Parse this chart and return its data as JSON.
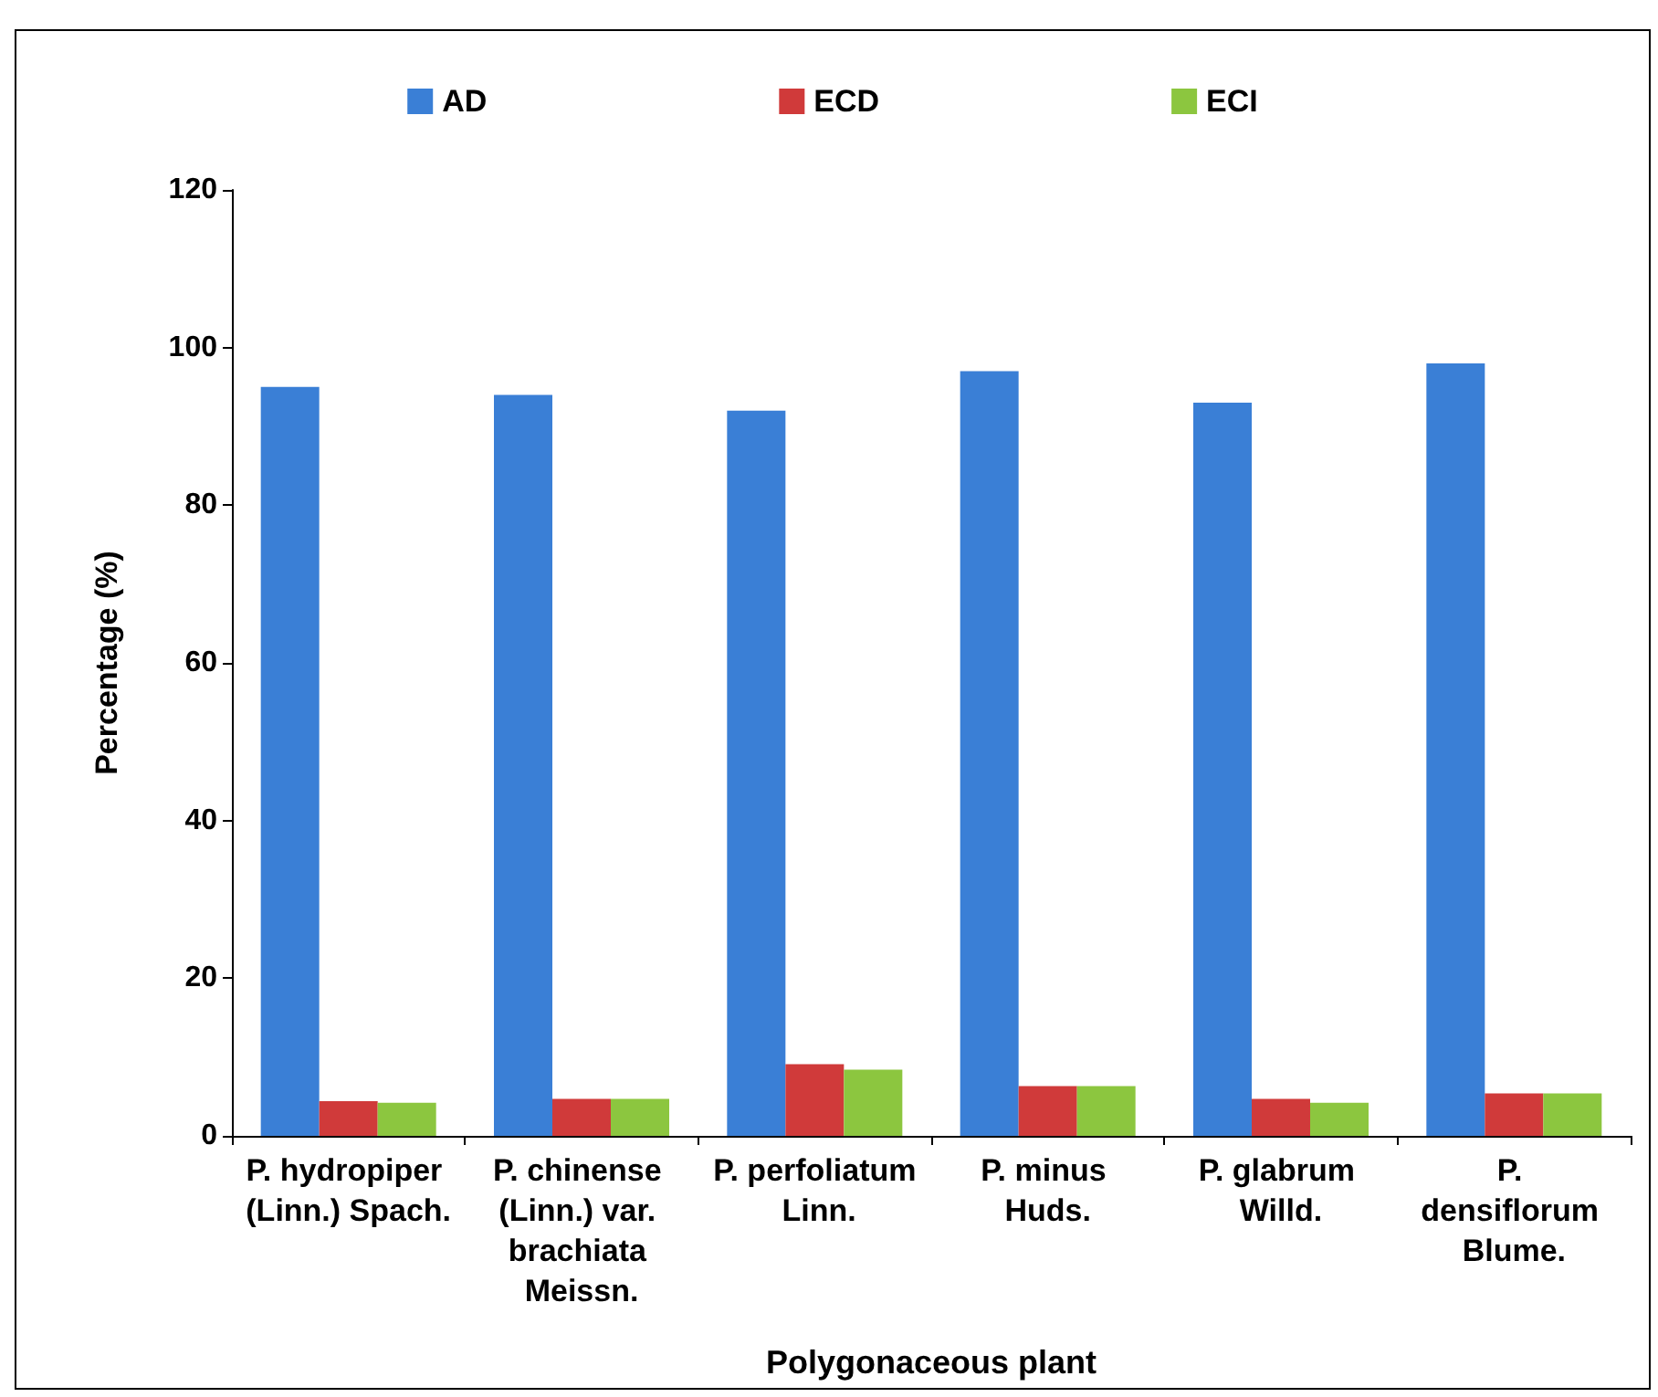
{
  "chart_data": {
    "type": "bar",
    "xlabel": "Polygonaceous plant",
    "ylabel": "Percentage (%)",
    "categories": [
      "P. hydropiper (Linn.) Spach.",
      "P. chinense (Linn.) var. brachiata Meissn.",
      "P. perfoliatum Linn.",
      "P. minus Huds.",
      "P. glabrum Willd.",
      "P. densiflorum Blume."
    ],
    "series": [
      {
        "name": "AD",
        "color": "#3a7fd6",
        "values": [
          95,
          94,
          92,
          97,
          93,
          98
        ]
      },
      {
        "name": "ECD",
        "color": "#d03a3a",
        "values": [
          4.4,
          4.7,
          9.1,
          6.3,
          4.7,
          5.4
        ]
      },
      {
        "name": "ECI",
        "color": "#8cc63f",
        "values": [
          4.2,
          4.7,
          8.4,
          6.3,
          4.2,
          5.4
        ]
      }
    ],
    "ylim": [
      0,
      120
    ],
    "yticks": [
      0,
      20,
      40,
      60,
      80,
      100,
      120
    ],
    "grid": false,
    "legend": "top"
  }
}
